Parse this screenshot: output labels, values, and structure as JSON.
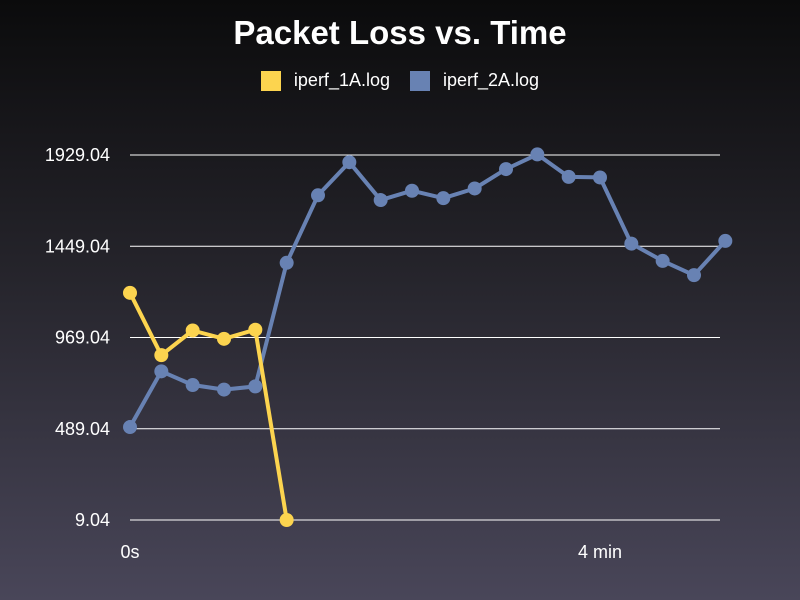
{
  "chart_data": {
    "type": "line",
    "title": "Packet Loss vs. Time",
    "xlabel": "",
    "ylabel": "",
    "x_tick_labels": [
      {
        "value": 0,
        "label": "0s"
      },
      {
        "value": 240,
        "label": "4 min"
      }
    ],
    "y_ticks": [
      9.04,
      489.04,
      969.04,
      1449.04,
      1929.04
    ],
    "y_tick_labels": [
      "9.04",
      "489.04",
      "969.04",
      "1449.04",
      "1929.04"
    ],
    "xlim": [
      0,
      310
    ],
    "ylim": [
      9.04,
      1929.04
    ],
    "grid": true,
    "legend_position": "top-center",
    "series": [
      {
        "name": "iperf_1A.log",
        "color": "#fcd44f",
        "x": [
          0,
          16,
          32,
          48,
          64,
          80
        ],
        "y": [
          1204,
          876,
          1006,
          962,
          1010,
          9
        ]
      },
      {
        "name": "iperf_2A.log",
        "color": "#6882b3",
        "x": [
          0,
          16,
          32,
          48,
          64,
          80,
          96,
          112,
          128,
          144,
          160,
          176,
          192,
          208,
          224,
          240,
          256,
          272,
          288,
          304
        ],
        "y": [
          498,
          791,
          719,
          695,
          712,
          1362,
          1717,
          1891,
          1692,
          1741,
          1702,
          1753,
          1855,
          1932,
          1814,
          1811,
          1463,
          1372,
          1297,
          1477
        ]
      }
    ]
  }
}
